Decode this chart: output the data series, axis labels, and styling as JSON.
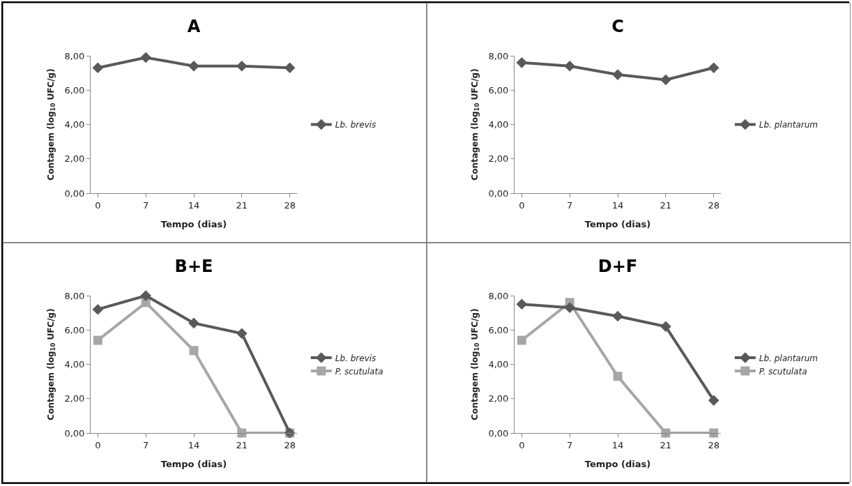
{
  "chart_data": [
    {
      "type": "line",
      "title": "A",
      "xlabel": "Tempo (dias)",
      "ylabel": "Contagem (log$_{10}$ UFC/g)",
      "categories": [
        "0",
        "7",
        "14",
        "21",
        "28"
      ],
      "ylim": [
        0,
        8
      ],
      "yticks": [
        {
          "value": 0,
          "label": "0,00"
        },
        {
          "value": 2,
          "label": "2,00"
        },
        {
          "value": 4,
          "label": "4,00"
        },
        {
          "value": 6,
          "label": "6,00"
        },
        {
          "value": 8,
          "label": "8,00"
        }
      ],
      "grid": false,
      "legend": "right",
      "series": [
        {
          "name": "Lb. brevis",
          "color": "#595959",
          "marker": "diamond",
          "values": [
            7.3,
            7.9,
            7.4,
            7.4,
            7.3
          ]
        }
      ]
    },
    {
      "type": "line",
      "title": "C",
      "xlabel": "Tempo (dias)",
      "ylabel": "Contagem (log$_{10}$ UFC/g)",
      "categories": [
        "0",
        "7",
        "14",
        "21",
        "28"
      ],
      "ylim": [
        0,
        8
      ],
      "yticks": [
        {
          "value": 0,
          "label": "0,00"
        },
        {
          "value": 2,
          "label": "2,00"
        },
        {
          "value": 4,
          "label": "4,00"
        },
        {
          "value": 6,
          "label": "6,00"
        },
        {
          "value": 8,
          "label": "8,00"
        }
      ],
      "grid": false,
      "legend": "right",
      "series": [
        {
          "name": "Lb. plantarum",
          "color": "#595959",
          "marker": "diamond",
          "values": [
            7.6,
            7.4,
            6.9,
            6.6,
            7.3
          ]
        }
      ]
    },
    {
      "type": "line",
      "title": "B+E",
      "xlabel": "Tempo (dias)",
      "ylabel": "Contagem (log$_{10}$ UFC/g)",
      "categories": [
        "0",
        "7",
        "14",
        "21",
        "28"
      ],
      "ylim": [
        0,
        8
      ],
      "yticks": [
        {
          "value": 0,
          "label": "0,00"
        },
        {
          "value": 2,
          "label": "2,00"
        },
        {
          "value": 4,
          "label": "4,00"
        },
        {
          "value": 6,
          "label": "6,00"
        },
        {
          "value": 8,
          "label": "8,00"
        }
      ],
      "grid": false,
      "legend": "right",
      "series": [
        {
          "name": "Lb. brevis",
          "color": "#595959",
          "marker": "diamond",
          "values": [
            7.2,
            8.0,
            6.4,
            5.8,
            0
          ]
        },
        {
          "name": "P. scutulata",
          "color": "#a6a6a6",
          "marker": "square",
          "values": [
            5.4,
            7.6,
            4.8,
            0,
            0
          ]
        }
      ]
    },
    {
      "type": "line",
      "title": "D+F",
      "xlabel": "Tempo (dias)",
      "ylabel": "Contagem (log$_{10}$ UFC/g)",
      "categories": [
        "0",
        "7",
        "14",
        "21",
        "28"
      ],
      "ylim": [
        0,
        8
      ],
      "yticks": [
        {
          "value": 0,
          "label": "0,00"
        },
        {
          "value": 2,
          "label": "2,00"
        },
        {
          "value": 4,
          "label": "4,00"
        },
        {
          "value": 6,
          "label": "6,00"
        },
        {
          "value": 8,
          "label": "8,00"
        }
      ],
      "grid": false,
      "legend": "right",
      "series": [
        {
          "name": "Lb. plantarum",
          "color": "#595959",
          "marker": "diamond",
          "values": [
            7.5,
            7.3,
            6.8,
            6.2,
            1.9
          ]
        },
        {
          "name": "P. scutulata",
          "color": "#a6a6a6",
          "marker": "square",
          "values": [
            5.4,
            7.6,
            3.3,
            0,
            0
          ]
        }
      ]
    }
  ]
}
